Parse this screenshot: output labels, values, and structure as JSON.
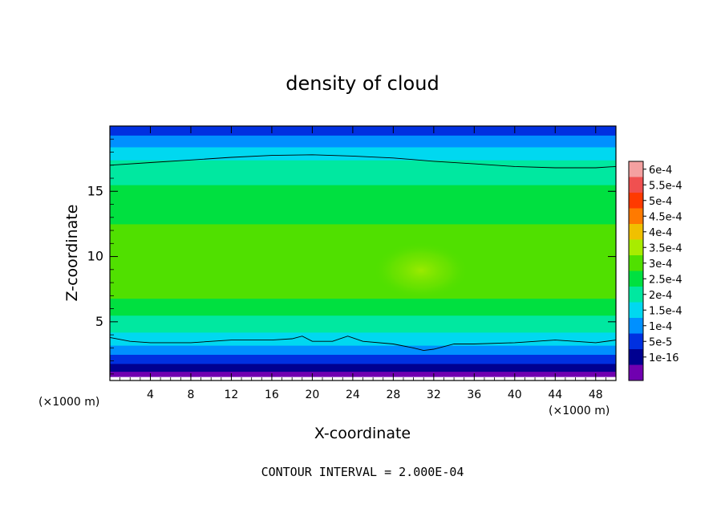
{
  "chart_data": {
    "type": "heatmap",
    "title": "density of cloud",
    "xlabel": "X-coordinate",
    "ylabel": "Z-coordinate",
    "x_unit": "(×1000 m)",
    "y_unit": "(×1000 m)",
    "footer": "CONTOUR INTERVAL = 2.000E-04",
    "xlim": [
      0,
      50
    ],
    "ylim": [
      0.5,
      20
    ],
    "x_ticks": [
      4,
      8,
      12,
      16,
      20,
      24,
      28,
      32,
      36,
      40,
      44,
      48
    ],
    "x_tick_labels": [
      "4",
      "8",
      "12",
      "16",
      "20",
      "24",
      "28",
      "32",
      "36",
      "40",
      "44",
      "48"
    ],
    "y_ticks": [
      5,
      10,
      15
    ],
    "y_tick_labels": [
      "5",
      "10",
      "15"
    ],
    "colorbar": {
      "labels": [
        "6e-4",
        "5.5e-4",
        "5e-4",
        "4.5e-4",
        "4e-4",
        "3.5e-4",
        "3e-4",
        "2.5e-4",
        "2e-4",
        "1.5e-4",
        "1e-4",
        "5e-5",
        "1e-16"
      ],
      "colors": [
        "#f4a0a0",
        "#f05050",
        "#ff3a00",
        "#ff7a00",
        "#f0c000",
        "#a8ec00",
        "#50e000",
        "#00e040",
        "#00e8a0",
        "#00d8f0",
        "#0090ff",
        "#0030e0",
        "#000090",
        "#7000b0"
      ]
    },
    "contour_lines": [
      {
        "level": "2.000E-04",
        "x": [
          0,
          4,
          8,
          12,
          16,
          20,
          24,
          28,
          32,
          36,
          40,
          44,
          48,
          50
        ],
        "y": [
          17.0,
          17.2,
          17.4,
          17.6,
          17.75,
          17.8,
          17.7,
          17.55,
          17.3,
          17.1,
          16.9,
          16.8,
          16.8,
          16.9
        ]
      },
      {
        "level": "2.000E-04",
        "x": [
          0,
          2,
          4,
          8,
          12,
          16,
          18,
          19,
          20,
          22,
          23.5,
          25,
          28,
          30,
          31,
          32,
          34,
          36,
          40,
          44,
          48,
          50
        ],
        "y": [
          3.8,
          3.5,
          3.4,
          3.4,
          3.6,
          3.6,
          3.7,
          3.9,
          3.5,
          3.5,
          3.9,
          3.5,
          3.3,
          3.0,
          2.8,
          2.9,
          3.3,
          3.3,
          3.4,
          3.6,
          3.4,
          3.6
        ]
      }
    ]
  }
}
